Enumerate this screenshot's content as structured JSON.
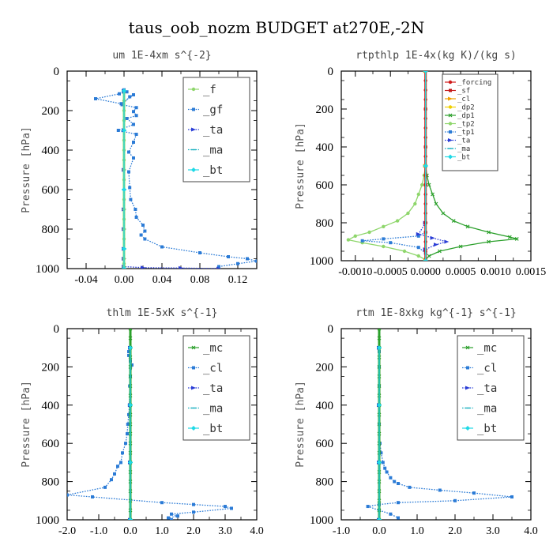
{
  "figure_title": "taus_oob_nozm  BUDGET at270E,-2N",
  "chart_data": [
    {
      "type": "line",
      "title": "um   1E-4xm s^{-2}",
      "ylabel": "Pressure [hPa]",
      "xlim": [
        -0.06,
        0.14
      ],
      "ylim": [
        1000,
        0
      ],
      "xticks": [
        "-0.04",
        "0.00",
        "0.04",
        "0.08",
        "0.12"
      ],
      "xtick_values": [
        -0.04,
        0,
        0.04,
        0.08,
        0.12
      ],
      "yticks": [
        "0",
        "200",
        "400",
        "600",
        "800",
        "1000"
      ],
      "ytick_values": [
        0,
        200,
        400,
        600,
        800,
        1000
      ],
      "series": [
        {
          "name": "_f",
          "color": "#8ed66b",
          "marker": "dot",
          "style": "solid",
          "x": [
            0,
            0,
            0,
            0,
            0,
            0,
            0,
            0,
            0,
            0,
            0,
            0,
            0,
            0,
            0,
            0,
            0,
            0,
            0,
            0,
            0
          ],
          "y": [
            100,
            150,
            200,
            250,
            300,
            350,
            400,
            450,
            500,
            550,
            600,
            650,
            700,
            750,
            800,
            850,
            900,
            950,
            975,
            990,
            1000
          ]
        },
        {
          "name": "_gf",
          "color": "#2b7bd6",
          "marker": "square",
          "style": "dotted",
          "x": [
            0,
            0.003,
            -0.005,
            -0.03,
            -0.003,
            0.01,
            0.006,
            -0.002,
            0.013,
            0.01,
            0.013,
            0.003,
            0.01,
            -0.006,
            0.013,
            0.01,
            0.005,
            0.01,
            0.005,
            0.006,
            0.007,
            0.012,
            0.013,
            0.02,
            0.022,
            0.018,
            0.022,
            0.04,
            0.08,
            0.11,
            0.13,
            0.14,
            0.12,
            0.1
          ],
          "y": [
            95,
            105,
            115,
            140,
            165,
            120,
            130,
            170,
            185,
            205,
            225,
            240,
            270,
            300,
            320,
            360,
            410,
            440,
            510,
            590,
            650,
            700,
            740,
            780,
            810,
            830,
            850,
            890,
            920,
            940,
            950,
            962,
            975,
            990
          ]
        },
        {
          "name": "_ta",
          "color": "#2a3dd6",
          "marker": "arrow",
          "style": "dotted",
          "x": [
            0,
            0,
            0,
            0,
            0,
            0,
            0,
            0,
            0.02,
            0.06,
            0.1
          ],
          "y": [
            100,
            300,
            500,
            700,
            800,
            900,
            950,
            990,
            995,
            997,
            1000
          ]
        },
        {
          "name": "_ma",
          "color": "#1ab0c0",
          "marker": "dash",
          "style": "dotted",
          "x": [
            0,
            0,
            0,
            0,
            0
          ],
          "y": [
            100,
            300,
            600,
            900,
            1000
          ]
        },
        {
          "name": "_bt",
          "color": "#1fd9e6",
          "marker": "diamond",
          "style": "solid",
          "x": [
            0,
            0,
            0,
            0,
            0
          ],
          "y": [
            100,
            300,
            600,
            900,
            1000
          ]
        }
      ]
    },
    {
      "type": "line",
      "title": "rtpthlp   1E-4x(kg K)/(kg s)",
      "ylabel": "Pressure [hPa]",
      "xlim": [
        -0.0012,
        0.0015
      ],
      "ylim": [
        1000,
        0
      ],
      "xticks": [
        "-0.0010",
        "-0.0005",
        "0.0000",
        "0.0005",
        "0.0010",
        "0.0015"
      ],
      "xtick_values": [
        -0.001,
        -0.0005,
        0,
        0.0005,
        0.001,
        0.0015
      ],
      "yticks": [
        "0",
        "200",
        "400",
        "600",
        "800",
        "1000"
      ],
      "ytick_values": [
        0,
        200,
        400,
        600,
        800,
        1000
      ],
      "series": [
        {
          "name": "_forcing",
          "color": "#d01a1a",
          "marker": "dot",
          "style": "solid",
          "x": [
            0,
            0,
            0,
            0,
            0,
            0,
            0,
            0,
            0,
            0,
            0,
            0,
            0,
            0,
            0,
            0,
            0,
            0,
            0,
            0,
            0
          ],
          "y": [
            0,
            50,
            100,
            150,
            200,
            250,
            300,
            350,
            400,
            450,
            500,
            550,
            600,
            650,
            700,
            750,
            800,
            850,
            900,
            950,
            1000
          ]
        },
        {
          "name": "_sf",
          "color": "#c41a1a",
          "marker": "square",
          "style": "solid",
          "x": [
            0,
            0,
            0,
            0,
            0,
            0
          ],
          "y": [
            0,
            200,
            400,
            600,
            800,
            1000
          ]
        },
        {
          "name": "_cl",
          "color": "#f0a000",
          "marker": "arrow",
          "style": "solid",
          "x": [
            0,
            0,
            0
          ],
          "y": [
            0,
            500,
            1000
          ]
        },
        {
          "name": "_dp2",
          "color": "#f0d000",
          "marker": "dot",
          "style": "solid",
          "x": [
            0,
            0,
            0
          ],
          "y": [
            0,
            500,
            1000
          ]
        },
        {
          "name": "_dp1",
          "color": "#2ca02c",
          "marker": "x",
          "style": "solid",
          "x": [
            0,
            2e-05,
            5e-05,
            0.0001,
            0.00015,
            0.00025,
            0.0004,
            0.0006,
            0.0009,
            0.0012,
            0.0013,
            0.0009,
            0.0005,
            0.0002,
            5e-05,
            0
          ],
          "y": [
            500,
            550,
            600,
            650,
            700,
            750,
            790,
            820,
            850,
            875,
            885,
            900,
            925,
            950,
            975,
            995
          ]
        },
        {
          "name": "_tp2",
          "color": "#8ed66b",
          "marker": "dot",
          "style": "solid",
          "x": [
            0,
            -2e-05,
            -5e-05,
            -0.0001,
            -0.00015,
            -0.00025,
            -0.0004,
            -0.0006,
            -0.0008,
            -0.001,
            -0.0011,
            -0.0009,
            -0.0006,
            -0.0003,
            -0.0001,
            0
          ],
          "y": [
            500,
            550,
            600,
            650,
            700,
            750,
            790,
            820,
            850,
            870,
            890,
            905,
            925,
            950,
            975,
            995
          ]
        },
        {
          "name": "_tp1",
          "color": "#2b7bd6",
          "marker": "square",
          "style": "dotted",
          "x": [
            0,
            -0.0001,
            -0.0006,
            -0.0009,
            -0.0005,
            -0.0001,
            0
          ],
          "y": [
            850,
            870,
            885,
            895,
            905,
            930,
            960
          ]
        },
        {
          "name": "_ta",
          "color": "#2a3dd6",
          "marker": "arrow",
          "style": "dotted",
          "x": [
            0,
            -0.0001,
            0.0001,
            0.0003,
            0.00015,
            0
          ],
          "y": [
            800,
            860,
            880,
            900,
            915,
            940
          ]
        },
        {
          "name": "_ma",
          "color": "#1ab0c0",
          "marker": "dash",
          "style": "dotted",
          "x": [
            0,
            0,
            0
          ],
          "y": [
            0,
            500,
            1000
          ]
        },
        {
          "name": "_bt",
          "color": "#1fd9e6",
          "marker": "diamond",
          "style": "solid",
          "x": [
            0,
            0,
            0
          ],
          "y": [
            0,
            500,
            1000
          ]
        }
      ]
    },
    {
      "type": "line",
      "title": "thlm   1E-5xK s^{-1}",
      "ylabel": "Pressure [hPa]",
      "xlim": [
        -2.0,
        4.0
      ],
      "ylim": [
        1000,
        0
      ],
      "xticks": [
        "-2.0",
        "-1.0",
        "0.0",
        "1.0",
        "2.0",
        "3.0",
        "4.0"
      ],
      "xtick_values": [
        -2,
        -1,
        0,
        1,
        2,
        3,
        4
      ],
      "yticks": [
        "0",
        "200",
        "400",
        "600",
        "800",
        "1000"
      ],
      "ytick_values": [
        0,
        200,
        400,
        600,
        800,
        1000
      ],
      "series": [
        {
          "name": "_mc",
          "color": "#2ca02c",
          "marker": "x",
          "style": "solid",
          "x": [
            0,
            0,
            0,
            0,
            0,
            0,
            0,
            0,
            0,
            0,
            0,
            0,
            0,
            0,
            0,
            0,
            0,
            0,
            0,
            0,
            0
          ],
          "y": [
            0,
            50,
            100,
            150,
            200,
            250,
            300,
            350,
            400,
            450,
            500,
            550,
            600,
            650,
            700,
            750,
            800,
            850,
            900,
            950,
            1000
          ]
        },
        {
          "name": "_cl",
          "color": "#2b7bd6",
          "marker": "square",
          "style": "dotted",
          "x": [
            -0.05,
            -0.05,
            0,
            0.05,
            0,
            -0.02,
            -0.03,
            -0.05,
            -0.08,
            -0.1,
            -0.15,
            -0.25,
            -0.3,
            -0.4,
            -0.5,
            -0.6,
            -0.8,
            -2.0,
            -1.2,
            1.0,
            2.0,
            3.0,
            3.2,
            2.0,
            1.3,
            1.5,
            1.2,
            1.3
          ],
          "y": [
            120,
            140,
            170,
            190,
            250,
            300,
            400,
            450,
            500,
            550,
            600,
            650,
            700,
            720,
            760,
            790,
            830,
            870,
            880,
            910,
            920,
            930,
            940,
            960,
            970,
            980,
            990,
            1000
          ]
        },
        {
          "name": "_ta",
          "color": "#2a3dd6",
          "marker": "arrow",
          "style": "dotted",
          "x": [
            0,
            0,
            0,
            0
          ],
          "y": [
            100,
            400,
            700,
            1000
          ]
        },
        {
          "name": "_ma",
          "color": "#1ab0c0",
          "marker": "dash",
          "style": "dotted",
          "x": [
            0,
            0,
            0,
            0
          ],
          "y": [
            100,
            400,
            700,
            1000
          ]
        },
        {
          "name": "_bt",
          "color": "#1fd9e6",
          "marker": "diamond",
          "style": "solid",
          "x": [
            0,
            0,
            0,
            0
          ],
          "y": [
            100,
            400,
            700,
            1000
          ]
        }
      ]
    },
    {
      "type": "line",
      "title": "rtm   1E-8xkg kg^{-1} s^{-1}",
      "ylabel": "Pressure [hPa]",
      "xlim": [
        -1.0,
        4.0
      ],
      "ylim": [
        1000,
        0
      ],
      "xticks": [
        "-1.0",
        "0.0",
        "1.0",
        "2.0",
        "3.0",
        "4.0"
      ],
      "xtick_values": [
        -1,
        0,
        1,
        2,
        3,
        4
      ],
      "yticks": [
        "0",
        "200",
        "400",
        "600",
        "800",
        "1000"
      ],
      "ytick_values": [
        0,
        200,
        400,
        600,
        800,
        1000
      ],
      "series": [
        {
          "name": "_mc",
          "color": "#2ca02c",
          "marker": "x",
          "style": "solid",
          "x": [
            0,
            0,
            0,
            0,
            0,
            0,
            0,
            0,
            0,
            0,
            0,
            0,
            0,
            0,
            0,
            0,
            0,
            0,
            0,
            0,
            0
          ],
          "y": [
            0,
            50,
            100,
            150,
            200,
            250,
            300,
            350,
            400,
            450,
            500,
            550,
            600,
            650,
            700,
            750,
            800,
            850,
            900,
            950,
            1000
          ]
        },
        {
          "name": "_cl",
          "color": "#2b7bd6",
          "marker": "square",
          "style": "dotted",
          "x": [
            0,
            0,
            0,
            0,
            0,
            0.02,
            0.05,
            0.1,
            0.15,
            0.2,
            0.3,
            0.4,
            0.5,
            0.8,
            1.6,
            2.5,
            3.5,
            2.0,
            0.5,
            0,
            -0.3,
            0,
            0.3,
            0.5
          ],
          "y": [
            120,
            200,
            300,
            400,
            500,
            600,
            650,
            700,
            730,
            750,
            780,
            800,
            810,
            830,
            845,
            860,
            880,
            900,
            910,
            920,
            930,
            950,
            970,
            990
          ]
        },
        {
          "name": "_ta",
          "color": "#2a3dd6",
          "marker": "arrow",
          "style": "dotted",
          "x": [
            0,
            0,
            0,
            0
          ],
          "y": [
            100,
            400,
            700,
            1000
          ]
        },
        {
          "name": "_ma",
          "color": "#1ab0c0",
          "marker": "dash",
          "style": "dotted",
          "x": [
            0,
            0,
            0,
            0
          ],
          "y": [
            100,
            400,
            700,
            1000
          ]
        },
        {
          "name": "_bt",
          "color": "#1fd9e6",
          "marker": "diamond",
          "style": "solid",
          "x": [
            0,
            0,
            0,
            0
          ],
          "y": [
            100,
            400,
            700,
            1000
          ]
        }
      ]
    }
  ]
}
